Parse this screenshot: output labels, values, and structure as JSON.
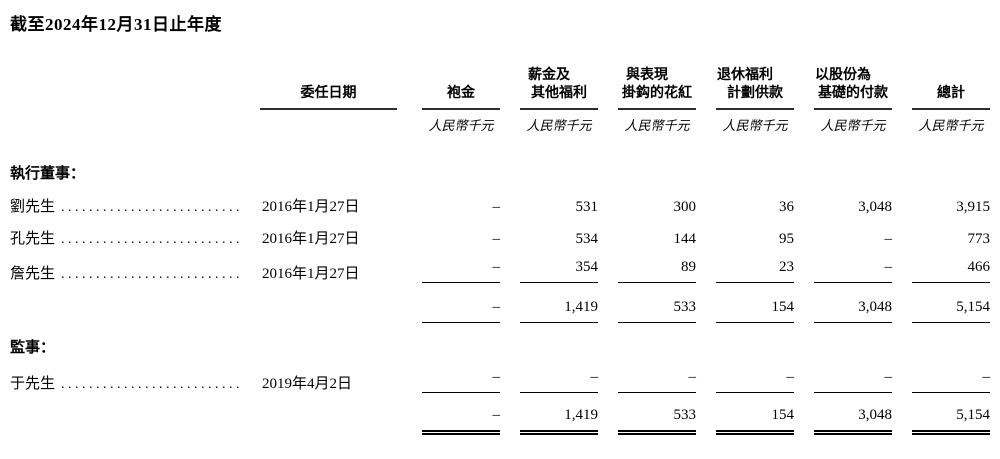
{
  "title": "截至2024年12月31日止年度",
  "leader_dots": "......................................",
  "dash": "–",
  "header": {
    "date_col": {
      "label": "委任日期"
    },
    "num_cols": [
      {
        "line1": "",
        "line2": "袍金",
        "unit": "人民幣千元"
      },
      {
        "line1": "薪金及",
        "line2": "其他福利",
        "unit": "人民幣千元"
      },
      {
        "line1": "與表現",
        "line2": "掛鈎的花紅",
        "unit": "人民幣千元"
      },
      {
        "line1": "退休福利",
        "line2": "計劃供款",
        "unit": "人民幣千元"
      },
      {
        "line1": "以股份為",
        "line2": "基礎的付款",
        "unit": "人民幣千元"
      },
      {
        "line1": "",
        "line2": "總計",
        "unit": "人民幣千元"
      }
    ]
  },
  "sections": {
    "executive": {
      "label": "執行董事："
    },
    "supervisor": {
      "label": "監事："
    }
  },
  "rows": {
    "liu": {
      "name": "劉先生",
      "date": "2016年1月27日",
      "values": [
        "–",
        "531",
        "300",
        "36",
        "3,048",
        "3,915"
      ]
    },
    "kong": {
      "name": "孔先生",
      "date": "2016年1月27日",
      "values": [
        "–",
        "534",
        "144",
        "95",
        "–",
        "773"
      ]
    },
    "zhan": {
      "name": "詹先生",
      "date": "2016年1月27日",
      "values": [
        "–",
        "354",
        "89",
        "23",
        "–",
        "466"
      ]
    },
    "subtotal": {
      "values": [
        "–",
        "1,419",
        "533",
        "154",
        "3,048",
        "5,154"
      ]
    },
    "yu": {
      "name": "于先生",
      "date": "2019年4月2日",
      "values": [
        "–",
        "–",
        "–",
        "–",
        "–",
        "–"
      ]
    },
    "total": {
      "values": [
        "–",
        "1,419",
        "533",
        "154",
        "3,048",
        "5,154"
      ]
    }
  }
}
